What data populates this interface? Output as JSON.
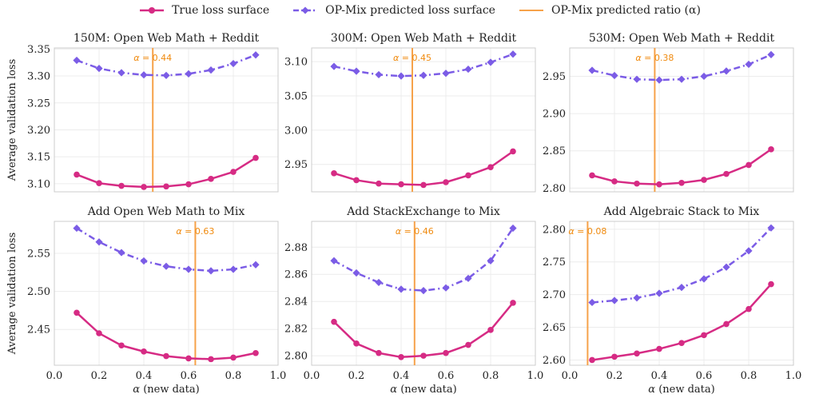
{
  "legend": {
    "true_label": "True loss surface",
    "pred_label": "OP-Mix predicted loss surface",
    "ratio_label": "OP-Mix predicted ratio (α)"
  },
  "colors": {
    "true": "#d62b84",
    "pred": "#7b5ce6",
    "ratio": "#f6a24a",
    "ratio_text": "#f08a0e",
    "grid": "#ececec",
    "frame": "#cccccc"
  },
  "chart_data": [
    {
      "type": "line",
      "title": "150M: Open Web Math + Reddit",
      "xlabel": "",
      "ylabel": "Average validation loss",
      "xlim": [
        0.0,
        1.0
      ],
      "ylim": [
        3.085,
        3.352
      ],
      "xticks": [],
      "xticklabels": [],
      "yticks": [
        3.1,
        3.15,
        3.2,
        3.25,
        3.3,
        3.35
      ],
      "yticklabels": [
        "3.10",
        "3.15",
        "3.20",
        "3.25",
        "3.30",
        "3.35"
      ],
      "x": [
        0.1,
        0.2,
        0.3,
        0.4,
        0.5,
        0.6,
        0.7,
        0.8,
        0.9
      ],
      "series": [
        {
          "name": "True loss surface",
          "values": [
            3.117,
            3.101,
            3.096,
            3.094,
            3.095,
            3.099,
            3.109,
            3.122,
            3.148
          ]
        },
        {
          "name": "OP-Mix predicted loss surface",
          "values": [
            3.329,
            3.314,
            3.306,
            3.302,
            3.301,
            3.304,
            3.311,
            3.323,
            3.339
          ]
        }
      ],
      "ratio": 0.44,
      "ratio_label": "α = 0.44",
      "grid": true
    },
    {
      "type": "line",
      "title": "300M: Open Web Math + Reddit",
      "xlabel": "",
      "ylabel": "",
      "xlim": [
        0.0,
        1.0
      ],
      "ylim": [
        2.91,
        3.12
      ],
      "xticks": [],
      "xticklabels": [],
      "yticks": [
        2.95,
        3.0,
        3.05,
        3.1
      ],
      "yticklabels": [
        "2.95",
        "3.00",
        "3.05",
        "3.10"
      ],
      "x": [
        0.1,
        0.2,
        0.3,
        0.4,
        0.5,
        0.6,
        0.7,
        0.8,
        0.9
      ],
      "series": [
        {
          "name": "True loss surface",
          "values": [
            2.937,
            2.927,
            2.922,
            2.921,
            2.92,
            2.924,
            2.934,
            2.946,
            2.969
          ]
        },
        {
          "name": "OP-Mix predicted loss surface",
          "values": [
            3.093,
            3.086,
            3.081,
            3.079,
            3.08,
            3.083,
            3.089,
            3.099,
            3.111
          ]
        }
      ],
      "ratio": 0.45,
      "ratio_label": "α = 0.45",
      "grid": true
    },
    {
      "type": "line",
      "title": "530M: Open Web Math + Reddit",
      "xlabel": "",
      "ylabel": "",
      "xlim": [
        0.0,
        1.0
      ],
      "ylim": [
        2.795,
        2.988
      ],
      "xticks": [],
      "xticklabels": [],
      "yticks": [
        2.8,
        2.85,
        2.9,
        2.95
      ],
      "yticklabels": [
        "2.80",
        "2.85",
        "2.90",
        "2.95"
      ],
      "x": [
        0.1,
        0.2,
        0.3,
        0.4,
        0.5,
        0.6,
        0.7,
        0.8,
        0.9
      ],
      "series": [
        {
          "name": "True loss surface",
          "values": [
            2.817,
            2.809,
            2.806,
            2.805,
            2.807,
            2.811,
            2.819,
            2.831,
            2.852
          ]
        },
        {
          "name": "OP-Mix predicted loss surface",
          "values": [
            2.958,
            2.951,
            2.946,
            2.945,
            2.946,
            2.95,
            2.957,
            2.966,
            2.979
          ]
        }
      ],
      "ratio": 0.38,
      "ratio_label": "α = 0.38",
      "grid": true
    },
    {
      "type": "line",
      "title": "Add Open Web Math to Mix",
      "xlabel": "α (new data)",
      "ylabel": "Average validation loss",
      "xlim": [
        0.0,
        1.0
      ],
      "ylim": [
        2.403,
        2.592
      ],
      "xticks": [
        0.0,
        0.2,
        0.4,
        0.6,
        0.8,
        1.0
      ],
      "xticklabels": [
        "0.0",
        "0.2",
        "0.4",
        "0.6",
        "0.8",
        "1.0"
      ],
      "yticks": [
        2.45,
        2.5,
        2.55
      ],
      "yticklabels": [
        "2.45",
        "2.50",
        "2.55"
      ],
      "x": [
        0.1,
        0.2,
        0.3,
        0.4,
        0.5,
        0.6,
        0.7,
        0.8,
        0.9
      ],
      "series": [
        {
          "name": "True loss surface",
          "values": [
            2.472,
            2.445,
            2.429,
            2.421,
            2.415,
            2.412,
            2.411,
            2.413,
            2.419
          ]
        },
        {
          "name": "OP-Mix predicted loss surface",
          "values": [
            2.583,
            2.565,
            2.551,
            2.54,
            2.533,
            2.529,
            2.527,
            2.529,
            2.535
          ]
        }
      ],
      "ratio": 0.63,
      "ratio_label": "α = 0.63",
      "grid": true
    },
    {
      "type": "line",
      "title": "Add StackExchange to Mix",
      "xlabel": "α (new data)",
      "ylabel": "",
      "xlim": [
        0.0,
        1.0
      ],
      "ylim": [
        2.793,
        2.899
      ],
      "xticks": [
        0.0,
        0.2,
        0.4,
        0.6,
        0.8,
        1.0
      ],
      "xticklabels": [
        "0.0",
        "0.2",
        "0.4",
        "0.6",
        "0.8",
        "1.0"
      ],
      "yticks": [
        2.8,
        2.82,
        2.84,
        2.86,
        2.88
      ],
      "yticklabels": [
        "2.80",
        "2.82",
        "2.84",
        "2.86",
        "2.88"
      ],
      "x": [
        0.1,
        0.2,
        0.3,
        0.4,
        0.5,
        0.6,
        0.7,
        0.8,
        0.9
      ],
      "series": [
        {
          "name": "True loss surface",
          "values": [
            2.825,
            2.809,
            2.802,
            2.799,
            2.8,
            2.802,
            2.808,
            2.819,
            2.839
          ]
        },
        {
          "name": "OP-Mix predicted loss surface",
          "values": [
            2.87,
            2.861,
            2.854,
            2.849,
            2.848,
            2.85,
            2.857,
            2.87,
            2.894
          ]
        }
      ],
      "ratio": 0.46,
      "ratio_label": "α = 0.46",
      "grid": true
    },
    {
      "type": "line",
      "title": "Add Algebraic Stack to Mix",
      "xlabel": "α (new data)",
      "ylabel": "",
      "xlim": [
        0.0,
        1.0
      ],
      "ylim": [
        2.592,
        2.812
      ],
      "xticks": [
        0.0,
        0.2,
        0.4,
        0.6,
        0.8,
        1.0
      ],
      "xticklabels": [
        "0.0",
        "0.2",
        "0.4",
        "0.6",
        "0.8",
        "1.0"
      ],
      "yticks": [
        2.6,
        2.65,
        2.7,
        2.75,
        2.8
      ],
      "yticklabels": [
        "2.60",
        "2.65",
        "2.70",
        "2.75",
        "2.80"
      ],
      "x": [
        0.1,
        0.2,
        0.3,
        0.4,
        0.5,
        0.6,
        0.7,
        0.8,
        0.9
      ],
      "series": [
        {
          "name": "True loss surface",
          "values": [
            2.6,
            2.605,
            2.61,
            2.617,
            2.626,
            2.638,
            2.655,
            2.678,
            2.716
          ]
        },
        {
          "name": "OP-Mix predicted loss surface",
          "values": [
            2.688,
            2.691,
            2.695,
            2.702,
            2.711,
            2.724,
            2.742,
            2.767,
            2.802
          ]
        }
      ],
      "ratio": 0.08,
      "ratio_label": "α = 0.08",
      "grid": true
    }
  ]
}
